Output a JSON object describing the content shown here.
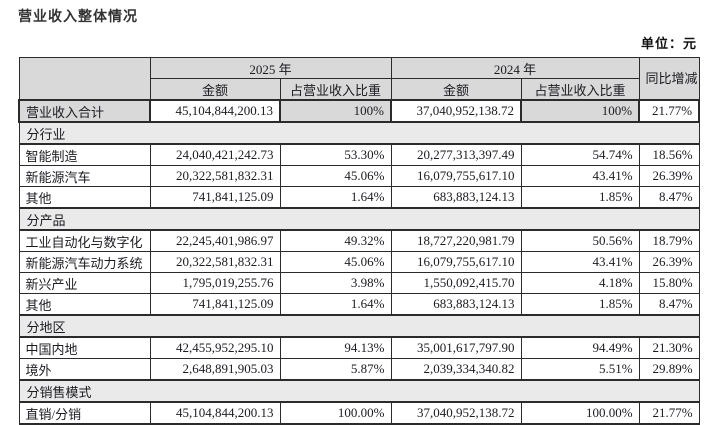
{
  "page": {
    "title": "营业收入整体情况",
    "unit": "单位：元"
  },
  "colors": {
    "header_bg": "#d9d9d9",
    "section_bg": "#eaeaea",
    "total_shaded_bg": "#d9d9d9",
    "border": "#2b2b2b",
    "text": "#1b1b22"
  },
  "table": {
    "header": {
      "year_2025": "2025 年",
      "year_2024": "2024 年",
      "amount": "金额",
      "share": "占营业收入比重",
      "yoy": "同比增减"
    },
    "rows": [
      {
        "type": "data",
        "highlight": true,
        "label": "营业收入合计",
        "amount_2025": "45,104,844,200.13",
        "pct_2025": "100%",
        "amount_2024": "37,040,952,138.72",
        "pct_2024": "100%",
        "yoy": "21.77%"
      },
      {
        "type": "section",
        "label": "分行业"
      },
      {
        "type": "data",
        "highlight": false,
        "label": "智能制造",
        "amount_2025": "24,040,421,242.73",
        "pct_2025": "53.30%",
        "amount_2024": "20,277,313,397.49",
        "pct_2024": "54.74%",
        "yoy": "18.56%"
      },
      {
        "type": "data",
        "highlight": false,
        "label": "新能源汽车",
        "amount_2025": "20,322,581,832.31",
        "pct_2025": "45.06%",
        "amount_2024": "16,079,755,617.10",
        "pct_2024": "43.41%",
        "yoy": "26.39%"
      },
      {
        "type": "data",
        "highlight": false,
        "label": "其他",
        "amount_2025": "741,841,125.09",
        "pct_2025": "1.64%",
        "amount_2024": "683,883,124.13",
        "pct_2024": "1.85%",
        "yoy": "8.47%"
      },
      {
        "type": "section",
        "label": "分产品"
      },
      {
        "type": "data",
        "highlight": false,
        "label": "工业自动化与数字化",
        "amount_2025": "22,245,401,986.97",
        "pct_2025": "49.32%",
        "amount_2024": "18,727,220,981.79",
        "pct_2024": "50.56%",
        "yoy": "18.79%"
      },
      {
        "type": "data",
        "highlight": false,
        "label": "新能源汽车动力系统",
        "amount_2025": "20,322,581,832.31",
        "pct_2025": "45.06%",
        "amount_2024": "16,079,755,617.10",
        "pct_2024": "43.41%",
        "yoy": "26.39%"
      },
      {
        "type": "data",
        "highlight": false,
        "label": "新兴产业",
        "amount_2025": "1,795,019,255.76",
        "pct_2025": "3.98%",
        "amount_2024": "1,550,092,415.70",
        "pct_2024": "4.18%",
        "yoy": "15.80%"
      },
      {
        "type": "data",
        "highlight": false,
        "label": "其他",
        "amount_2025": "741,841,125.09",
        "pct_2025": "1.64%",
        "amount_2024": "683,883,124.13",
        "pct_2024": "1.85%",
        "yoy": "8.47%"
      },
      {
        "type": "section",
        "label": "分地区"
      },
      {
        "type": "data",
        "highlight": false,
        "label": "中国内地",
        "amount_2025": "42,455,952,295.10",
        "pct_2025": "94.13%",
        "amount_2024": "35,001,617,797.90",
        "pct_2024": "94.49%",
        "yoy": "21.30%"
      },
      {
        "type": "data",
        "highlight": false,
        "label": "境外",
        "amount_2025": "2,648,891,905.03",
        "pct_2025": "5.87%",
        "amount_2024": "2,039,334,340.82",
        "pct_2024": "5.51%",
        "yoy": "29.89%"
      },
      {
        "type": "section",
        "label": "分销售模式"
      },
      {
        "type": "data",
        "highlight": false,
        "label": "直销/分销",
        "amount_2025": "45,104,844,200.13",
        "pct_2025": "100.00%",
        "amount_2024": "37,040,952,138.72",
        "pct_2024": "100.00%",
        "yoy": "21.77%"
      }
    ]
  }
}
